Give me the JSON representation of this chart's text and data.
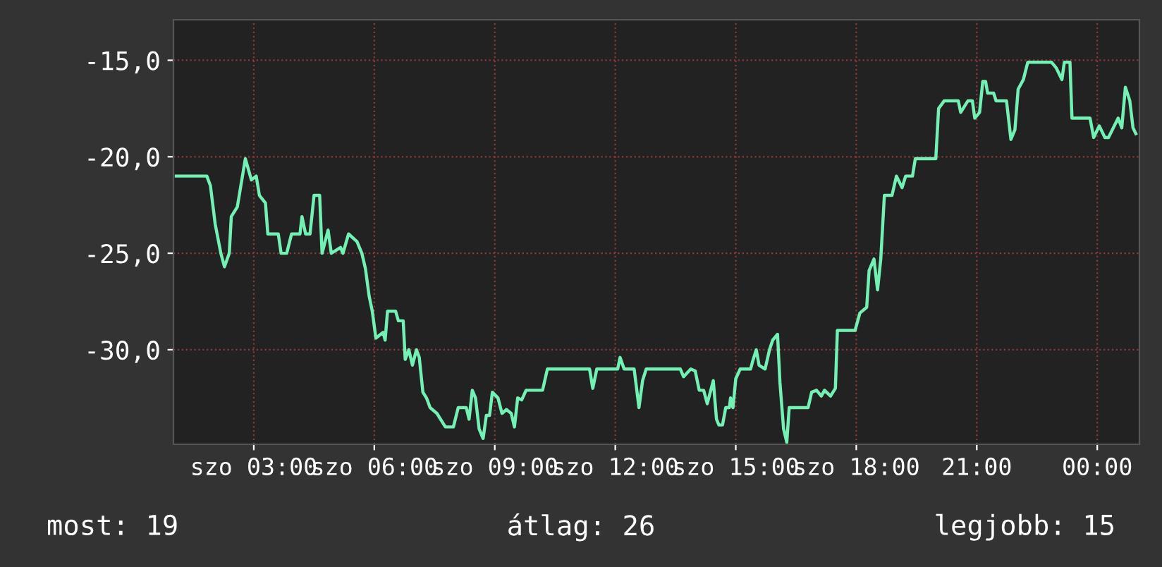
{
  "chart_data": {
    "type": "line",
    "color": "#73f0b4",
    "grid": true,
    "line_style": "solid",
    "xlim": [
      1.0,
      25.05
    ],
    "ylim": [
      -34.9,
      -12.9
    ],
    "xticks": [
      {
        "value": 3,
        "label": "szo 03:00"
      },
      {
        "value": 6,
        "label": "szo 06:00"
      },
      {
        "value": 9,
        "label": "szo 09:00"
      },
      {
        "value": 12,
        "label": "szo 12:00"
      },
      {
        "value": 15,
        "label": "szo 15:00"
      },
      {
        "value": 18,
        "label": "szo 18:00"
      },
      {
        "value": 21,
        "label": "21:00"
      },
      {
        "value": 24,
        "label": "00:00"
      }
    ],
    "yticks": [
      {
        "value": -15,
        "label": "-15,0"
      },
      {
        "value": -20,
        "label": "-20,0"
      },
      {
        "value": -25,
        "label": "-25,0"
      },
      {
        "value": -30,
        "label": "-30,0"
      }
    ],
    "x": [
      1.07,
      1.83,
      1.92,
      2.04,
      2.18,
      2.27,
      2.39,
      2.44,
      2.59,
      2.67,
      2.79,
      2.94,
      3.06,
      3.14,
      3.29,
      3.35,
      3.61,
      3.68,
      3.82,
      3.94,
      4.15,
      4.2,
      4.29,
      4.4,
      4.5,
      4.64,
      4.7,
      4.85,
      4.93,
      5.16,
      5.22,
      5.36,
      5.57,
      5.69,
      5.78,
      5.87,
      5.95,
      6.04,
      6.22,
      6.27,
      6.33,
      6.53,
      6.6,
      6.72,
      6.77,
      6.86,
      6.95,
      7.05,
      7.12,
      7.21,
      7.3,
      7.39,
      7.56,
      7.77,
      7.97,
      8.09,
      8.29,
      8.36,
      8.44,
      8.52,
      8.61,
      8.71,
      8.79,
      8.87,
      8.94,
      9.08,
      9.18,
      9.29,
      9.41,
      9.49,
      9.57,
      9.67,
      9.78,
      10.19,
      10.31,
      11.36,
      11.44,
      11.54,
      12.06,
      12.12,
      12.22,
      12.47,
      12.59,
      12.68,
      12.77,
      13.62,
      13.7,
      13.88,
      13.99,
      14.09,
      14.2,
      14.29,
      14.44,
      14.52,
      14.58,
      14.67,
      14.75,
      14.84,
      14.87,
      14.93,
      15.0,
      15.11,
      15.37,
      15.42,
      15.51,
      15.58,
      15.73,
      15.84,
      15.92,
      16.04,
      16.1,
      16.19,
      16.27,
      16.33,
      16.8,
      16.89,
      17.01,
      17.13,
      17.21,
      17.36,
      17.48,
      17.53,
      17.97,
      18.09,
      18.26,
      18.32,
      18.44,
      18.53,
      18.61,
      18.7,
      18.89,
      19.0,
      19.14,
      19.23,
      19.4,
      19.47,
      19.98,
      20.05,
      20.19,
      20.54,
      20.6,
      20.78,
      20.89,
      20.95,
      21.07,
      21.15,
      21.22,
      21.27,
      21.42,
      21.48,
      21.74,
      21.85,
      21.95,
      22.03,
      22.16,
      22.27,
      22.86,
      22.98,
      23.12,
      23.18,
      23.32,
      23.37,
      23.82,
      23.91,
      24.05,
      24.19,
      24.28,
      24.4,
      24.52,
      24.61,
      24.7,
      24.81,
      24.89,
      24.96
    ],
    "values": [
      -21.0,
      -21.0,
      -21.5,
      -23.5,
      -25.0,
      -25.7,
      -25.0,
      -23.1,
      -22.6,
      -21.6,
      -20.1,
      -21.2,
      -21.0,
      -22.0,
      -22.4,
      -24.0,
      -24.0,
      -25.0,
      -25.0,
      -24.0,
      -24.0,
      -23.1,
      -24.0,
      -24.0,
      -22.0,
      -22.0,
      -25.0,
      -23.8,
      -25.0,
      -24.7,
      -25.0,
      -24.0,
      -24.4,
      -25.0,
      -25.8,
      -27.2,
      -28.0,
      -29.4,
      -29.1,
      -29.5,
      -28.0,
      -28.0,
      -28.5,
      -28.5,
      -30.5,
      -30.0,
      -30.8,
      -30.0,
      -30.4,
      -32.2,
      -32.5,
      -33.0,
      -33.3,
      -34.0,
      -34.0,
      -33.0,
      -33.0,
      -33.6,
      -32.1,
      -32.5,
      -34.1,
      -34.6,
      -33.4,
      -33.4,
      -32.2,
      -32.5,
      -33.3,
      -33.1,
      -33.3,
      -34.0,
      -32.5,
      -32.6,
      -32.1,
      -32.1,
      -31.0,
      -31.0,
      -32.0,
      -31.0,
      -31.0,
      -30.4,
      -31.0,
      -31.0,
      -33.0,
      -31.6,
      -31.0,
      -31.0,
      -31.4,
      -31.0,
      -31.1,
      -32.1,
      -32.1,
      -32.8,
      -31.6,
      -33.6,
      -33.9,
      -33.9,
      -33.0,
      -33.0,
      -32.5,
      -33.0,
      -31.5,
      -31.0,
      -31.0,
      -30.6,
      -30.0,
      -30.8,
      -31.0,
      -30.0,
      -29.5,
      -29.2,
      -31.7,
      -34.1,
      -34.8,
      -33.0,
      -33.0,
      -32.2,
      -32.1,
      -32.4,
      -32.1,
      -32.4,
      -32.0,
      -29.0,
      -29.0,
      -28.1,
      -27.8,
      -25.9,
      -25.3,
      -26.9,
      -25.3,
      -22.0,
      -22.0,
      -21.0,
      -21.6,
      -21.0,
      -21.0,
      -20.1,
      -20.1,
      -17.5,
      -17.1,
      -17.1,
      -17.7,
      -17.1,
      -17.1,
      -18.0,
      -17.7,
      -16.1,
      -16.1,
      -16.7,
      -16.7,
      -17.1,
      -17.1,
      -19.1,
      -18.6,
      -16.5,
      -16.0,
      -15.1,
      -15.1,
      -15.4,
      -16.0,
      -15.1,
      -15.1,
      -18.0,
      -18.0,
      -19.0,
      -18.4,
      -19.0,
      -19.0,
      -18.5,
      -18.0,
      -18.5,
      -16.4,
      -17.1,
      -18.5,
      -18.8
    ],
    "annotations": [
      "most: 19",
      "átlag: 26",
      "legjobb: 15"
    ]
  }
}
